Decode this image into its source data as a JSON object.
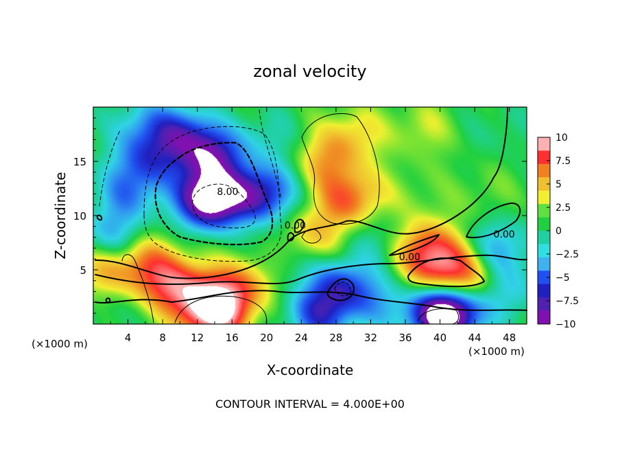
{
  "chart_data": {
    "type": "heatmap",
    "title": "zonal velocity",
    "xlabel": "X-coordinate",
    "ylabel": "Z-coordinate",
    "x_unit_left": "(×1000 m)",
    "x_unit_right": "(×1000 m)",
    "footer": "CONTOUR INTERVAL = 4.000E+00",
    "xlim": [
      0,
      50
    ],
    "ylim": [
      0,
      20
    ],
    "x_ticks": [
      4,
      8,
      12,
      16,
      20,
      24,
      28,
      32,
      36,
      40,
      44,
      48
    ],
    "y_ticks": [
      5,
      10,
      15
    ],
    "colorbar": {
      "range": [
        -10,
        10
      ],
      "tick_values": [
        10,
        7.5,
        5,
        2.5,
        0,
        -2.5,
        -5,
        -7.5,
        -10
      ],
      "tick_labels": [
        "10",
        "7.5",
        "5",
        "2.5",
        "0",
        "−2.5",
        "−5",
        "−7.5",
        "−10"
      ],
      "colors": [
        "#ffb0b0",
        "#ff3030",
        "#f08020",
        "#f0c030",
        "#f0f030",
        "#60e040",
        "#20d040",
        "#20d0a0",
        "#30e0e0",
        "#40b0f0",
        "#2050f0",
        "#2020c0",
        "#5020b0",
        "#8010b0"
      ]
    },
    "contour_labels": [
      {
        "text": "8.00",
        "x": 15.5,
        "y": 12.2
      },
      {
        "text": "0.00",
        "x": 23.3,
        "y": 9.1
      },
      {
        "text": "0.00",
        "x": 36.5,
        "y": 6.2
      },
      {
        "text": "0.00",
        "x": 47.4,
        "y": 8.3
      }
    ],
    "features": [
      {
        "x": 13.5,
        "y": 11.5,
        "v": -13
      },
      {
        "x": 13.5,
        "y": 15.5,
        "v": -8
      },
      {
        "x": 10,
        "y": 17.5,
        "v": -6
      },
      {
        "x": 6,
        "y": 15,
        "v": -5
      },
      {
        "x": 4,
        "y": 12,
        "v": -4
      },
      {
        "x": 19.5,
        "y": 12,
        "v": -8
      },
      {
        "x": 5.5,
        "y": 18.5,
        "v": -3
      },
      {
        "x": 20,
        "y": 17,
        "v": -2
      },
      {
        "x": 14,
        "y": 1.5,
        "v": 14
      },
      {
        "x": 9.5,
        "y": 3.5,
        "v": 7
      },
      {
        "x": 6,
        "y": 5.5,
        "v": 5
      },
      {
        "x": 18,
        "y": 4,
        "v": 4
      },
      {
        "x": 1,
        "y": 5,
        "v": 4
      },
      {
        "x": 29.5,
        "y": 11.5,
        "v": 6
      },
      {
        "x": 27,
        "y": 15,
        "v": 4
      },
      {
        "x": 30,
        "y": 17.5,
        "v": 3
      },
      {
        "x": 25,
        "y": 8,
        "v": 4
      },
      {
        "x": 39.5,
        "y": 5.5,
        "v": 7
      },
      {
        "x": 43,
        "y": 4,
        "v": 6
      },
      {
        "x": 38,
        "y": 7.5,
        "v": 4
      },
      {
        "x": 40,
        "y": 0.8,
        "v": -10
      },
      {
        "x": 42,
        "y": 1.5,
        "v": -6
      },
      {
        "x": 28.5,
        "y": 3.5,
        "v": -6
      },
      {
        "x": 26,
        "y": 0.8,
        "v": -6
      },
      {
        "x": 33,
        "y": 2,
        "v": -3
      },
      {
        "x": 38,
        "y": 18,
        "v": 2
      },
      {
        "x": 47,
        "y": 18,
        "v": -1
      },
      {
        "x": 45,
        "y": 12,
        "v": 1
      },
      {
        "x": 36,
        "y": 12,
        "v": 1
      },
      {
        "x": 47,
        "y": 7,
        "v": -4
      },
      {
        "x": 48,
        "y": 3,
        "v": -3
      },
      {
        "x": 33,
        "y": 8,
        "v": -2
      },
      {
        "x": 22,
        "y": 6,
        "v": -2
      },
      {
        "x": 2,
        "y": 8,
        "v": -4
      },
      {
        "x": 1,
        "y": 1.5,
        "v": -1
      }
    ]
  }
}
